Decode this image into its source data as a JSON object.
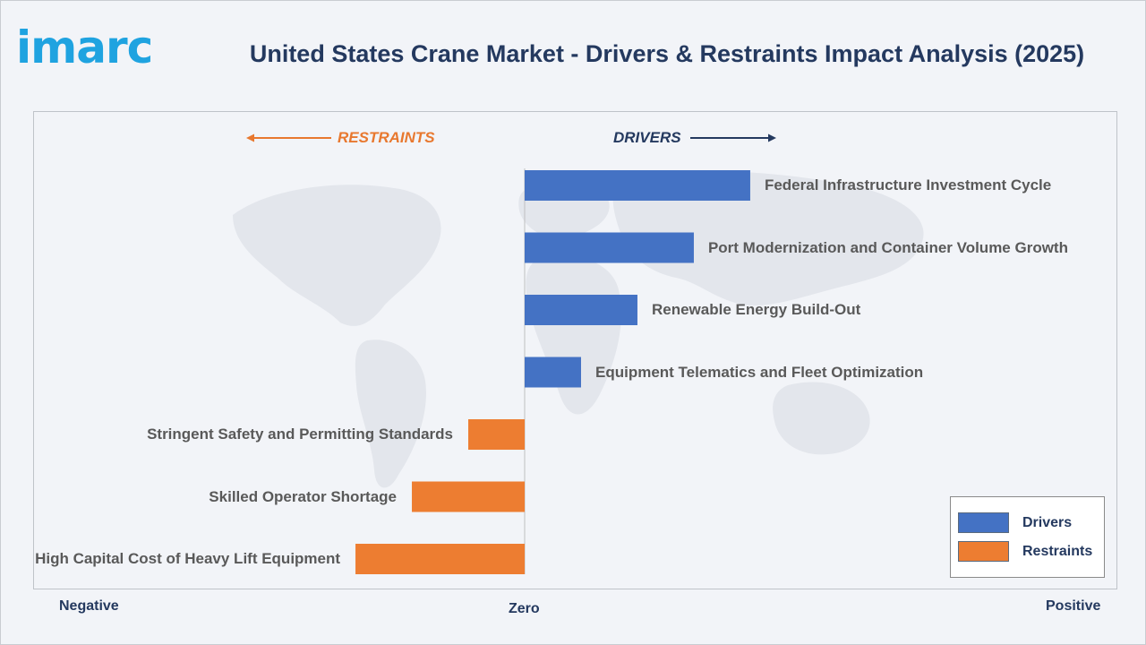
{
  "header": {
    "logo_text": "imarc",
    "title": "United States Crane Market - Drivers & Restraints Impact Analysis (2025)"
  },
  "colors": {
    "drivers": "#4472c4",
    "restraints": "#ed7d31",
    "title": "#24395f",
    "logo": "#1fa3e0"
  },
  "chart_data": {
    "type": "bar",
    "orientation": "horizontal",
    "direction_labels": {
      "restraints": "RESTRAINTS",
      "drivers": "DRIVERS"
    },
    "axis_labels": {
      "negative": "Negative",
      "zero": "Zero",
      "positive": "Positive"
    },
    "categories": [
      "Federal Infrastructure Investment Cycle",
      "Port Modernization and Container Volume Growth",
      "Renewable Energy Build-Out",
      "Equipment Telematics and Fleet Optimization",
      "Stringent Safety and Permitting Standards",
      "Skilled Operator Shortage",
      "High Capital Cost of Heavy Lift Equipment"
    ],
    "series": [
      {
        "name": "Drivers",
        "values": [
          4,
          3,
          2,
          1,
          null,
          null,
          null
        ]
      },
      {
        "name": "Restraints",
        "values": [
          null,
          null,
          null,
          null,
          -1,
          -2,
          -3
        ]
      }
    ],
    "xlim": [
      -8.7,
      10.4
    ],
    "legend": {
      "position": "bottom-right",
      "entries": [
        "Drivers",
        "Restraints"
      ]
    },
    "grid": false
  }
}
